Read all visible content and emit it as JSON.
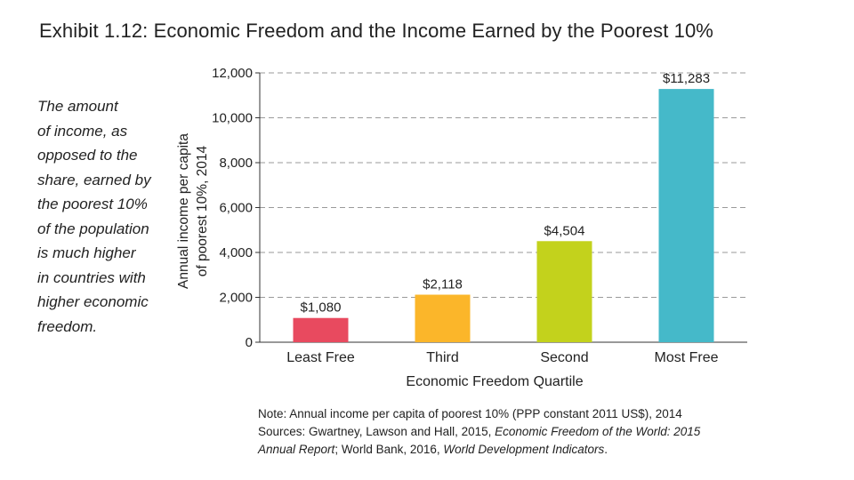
{
  "title": "Exhibit 1.12: Economic Freedom and the Income Earned by the Poorest 10%",
  "side_note_lines": [
    "The amount",
    "of income, as",
    "opposed to the",
    "share, earned by",
    "the poorest 10%",
    "of the population",
    "is much higher",
    "in countries with",
    "higher economic",
    "freedom."
  ],
  "chart_data": {
    "type": "bar",
    "categories": [
      "Least Free",
      "Third",
      "Second",
      "Most Free"
    ],
    "values": [
      1080,
      2118,
      4504,
      11283
    ],
    "value_labels": [
      "$1,080",
      "$2,118",
      "$4,504",
      "$11,283"
    ],
    "colors": [
      "#e84a5f",
      "#fbb62a",
      "#c3d21c",
      "#45b9c9"
    ],
    "xlabel": "Economic Freedom Quartile",
    "ylabel_lines": [
      "Annual income per capita",
      "of poorest 10%, 2014"
    ],
    "ylim": [
      0,
      12000
    ],
    "yticks": [
      0,
      2000,
      4000,
      6000,
      8000,
      10000,
      12000
    ],
    "ytick_labels": [
      "0",
      "2,000",
      "4,000",
      "6,000",
      "8,000",
      "10,000",
      "12,000"
    ],
    "grid": "dashed horizontal"
  },
  "footnote": {
    "line1": "Note: Annual income per capita of poorest 10% (PPP constant 2011 US$), 2014",
    "line2_prefix": "Sources: Gwartney, Lawson and Hall, 2015, ",
    "line2_italic": "Economic Freedom of the World: 2015",
    "line3_italic_a": "Annual Report",
    "line3_mid": "; World Bank, 2016, ",
    "line3_italic_b": "World Development Indicators",
    "line3_end": "."
  }
}
